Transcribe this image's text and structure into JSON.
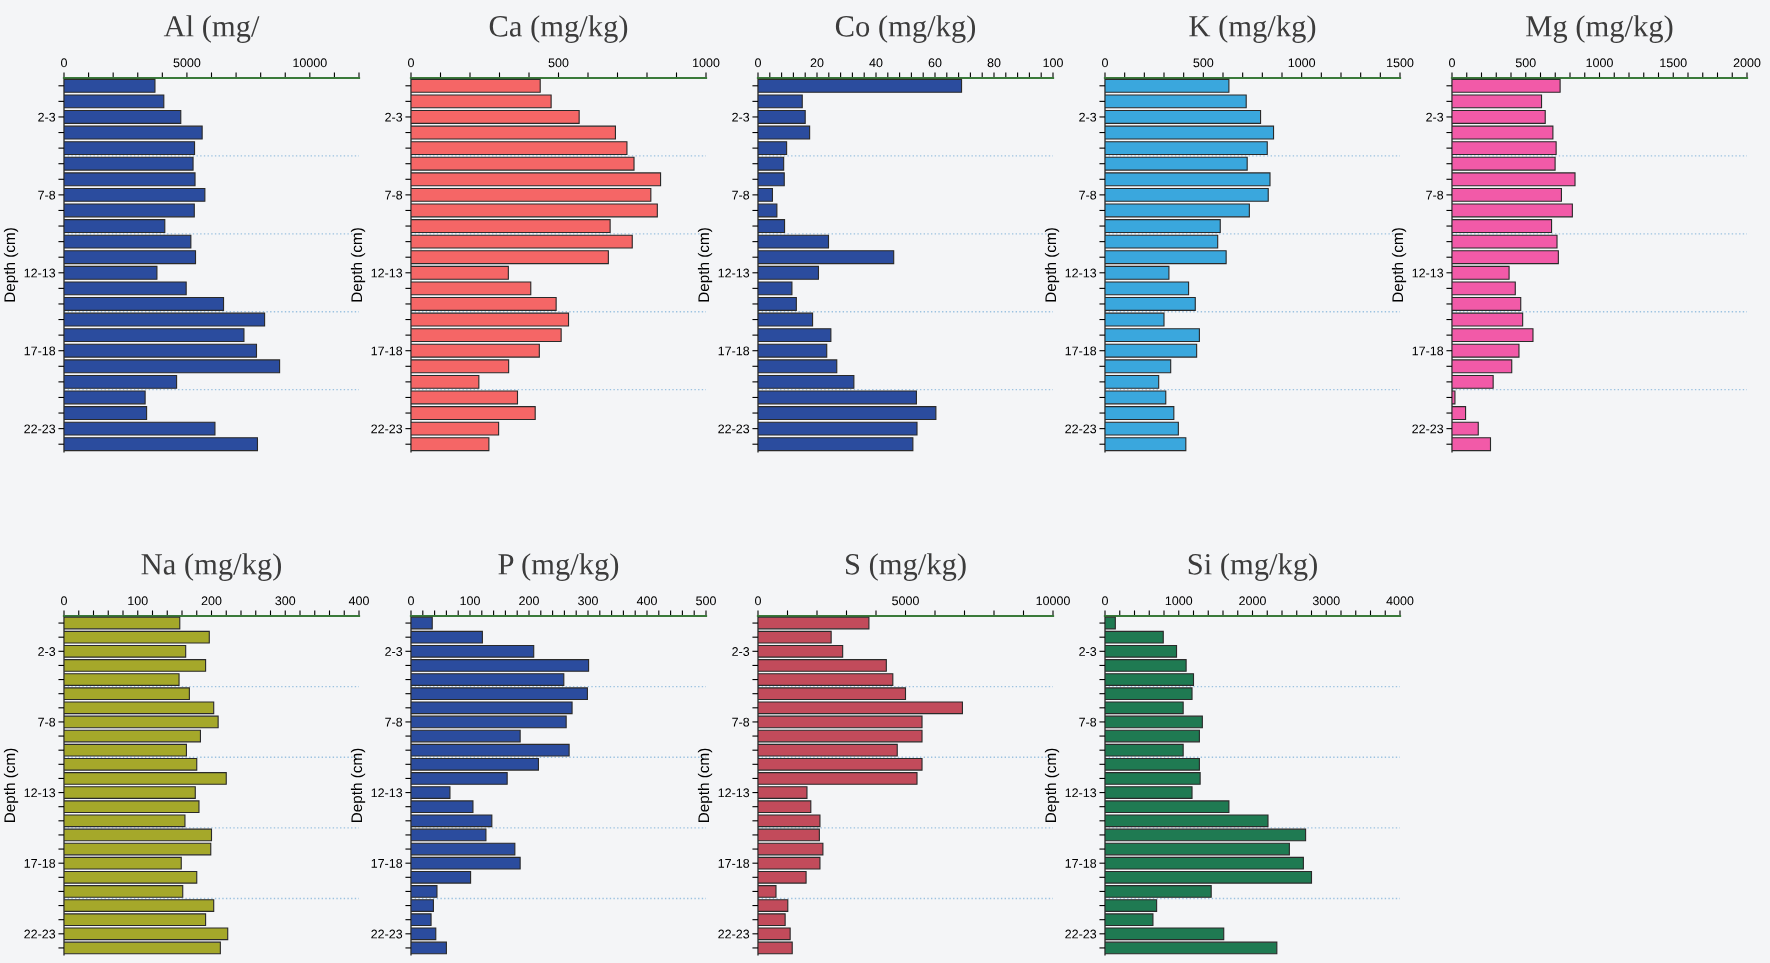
{
  "chart_data": [
    {
      "type": "bar",
      "orientation": "horizontal",
      "title": "Al (mg/",
      "ylabel": "Depth (cm)",
      "color": "#2b4c9e",
      "categories": [
        null,
        null,
        "2-3",
        null,
        null,
        null,
        null,
        "7-8",
        null,
        null,
        null,
        null,
        "12-13",
        null,
        null,
        null,
        null,
        "17-18",
        null,
        null,
        null,
        null,
        "22-23",
        null
      ],
      "values": [
        3700,
        4060,
        4750,
        5620,
        5310,
        5250,
        5330,
        5730,
        5300,
        4100,
        5160,
        5350,
        3780,
        4970,
        6490,
        8160,
        7320,
        7830,
        8770,
        4580,
        3300,
        3360,
        6140,
        7870
      ],
      "xlim": [
        0,
        12000
      ],
      "xticks": [
        0,
        {
          "value": 1000,
          "label": null
        },
        {
          "value": 2000,
          "label": null
        },
        {
          "value": 3000,
          "label": null
        },
        {
          "value": 4000,
          "label": null
        },
        5000,
        {
          "value": 6000,
          "label": null
        },
        {
          "value": 7000,
          "label": null
        },
        {
          "value": 8000,
          "label": null
        },
        {
          "value": 9000,
          "label": null
        },
        10000,
        {
          "value": 11000,
          "label": null
        },
        {
          "value": 12000,
          "label": null
        }
      ]
    },
    {
      "type": "bar",
      "orientation": "horizontal",
      "title": "Ca (mg/kg)",
      "ylabel": "Depth (cm)",
      "color": "#f56666",
      "categories": [
        null,
        null,
        "2-3",
        null,
        null,
        null,
        null,
        "7-8",
        null,
        null,
        null,
        null,
        "12-13",
        null,
        null,
        null,
        null,
        "17-18",
        null,
        null,
        null,
        null,
        "22-23",
        null
      ],
      "values": [
        438,
        475,
        570,
        693,
        732,
        756,
        846,
        813,
        835,
        675,
        750,
        669,
        330,
        406,
        492,
        534,
        509,
        435,
        331,
        230,
        361,
        421,
        297,
        264
      ],
      "xlim": [
        0,
        1000
      ],
      "xticks": [
        0,
        {
          "value": 100,
          "label": null
        },
        {
          "value": 200,
          "label": null
        },
        {
          "value": 300,
          "label": null
        },
        {
          "value": 400,
          "label": null
        },
        500,
        {
          "value": 600,
          "label": null
        },
        {
          "value": 700,
          "label": null
        },
        {
          "value": 800,
          "label": null
        },
        {
          "value": 900,
          "label": null
        },
        1000
      ]
    },
    {
      "type": "bar",
      "orientation": "horizontal",
      "title": "Co (mg/kg)",
      "ylabel": "Depth (cm)",
      "color": "#2b4c9e",
      "categories": [
        null,
        null,
        "2-3",
        null,
        null,
        null,
        null,
        "7-8",
        null,
        null,
        null,
        null,
        "12-13",
        null,
        null,
        null,
        null,
        "17-18",
        null,
        null,
        null,
        null,
        "22-23",
        null
      ],
      "values": [
        69,
        15,
        16,
        17.5,
        9.7,
        8.7,
        8.9,
        4.9,
        6.4,
        9,
        23.9,
        46,
        20.5,
        11.5,
        13,
        18.5,
        24.7,
        23.3,
        26.7,
        32.5,
        53.7,
        60.3,
        53.9,
        52.5
      ],
      "xlim": [
        0,
        100
      ],
      "xticks": [
        0,
        {
          "value": 4,
          "label": null
        },
        {
          "value": 8,
          "label": null
        },
        {
          "value": 12,
          "label": null
        },
        {
          "value": 16,
          "label": null
        },
        20,
        {
          "value": 24,
          "label": null
        },
        {
          "value": 28,
          "label": null
        },
        {
          "value": 32,
          "label": null
        },
        {
          "value": 36,
          "label": null
        },
        40,
        {
          "value": 44,
          "label": null
        },
        {
          "value": 48,
          "label": null
        },
        {
          "value": 52,
          "label": null
        },
        {
          "value": 56,
          "label": null
        },
        60,
        {
          "value": 64,
          "label": null
        },
        {
          "value": 68,
          "label": null
        },
        {
          "value": 72,
          "label": null
        },
        {
          "value": 76,
          "label": null
        },
        80,
        {
          "value": 84,
          "label": null
        },
        {
          "value": 88,
          "label": null
        },
        {
          "value": 92,
          "label": null
        },
        {
          "value": 96,
          "label": null
        },
        100
      ]
    },
    {
      "type": "bar",
      "orientation": "horizontal",
      "title": "K (mg/kg)",
      "ylabel": "Depth (cm)",
      "color": "#3aa7dd",
      "categories": [
        null,
        null,
        "2-3",
        null,
        null,
        null,
        null,
        "7-8",
        null,
        null,
        null,
        null,
        "12-13",
        null,
        null,
        null,
        null,
        "17-18",
        null,
        null,
        null,
        null,
        "22-23",
        null
      ],
      "values": [
        630,
        718,
        791,
        857,
        825,
        723,
        839,
        830,
        734,
        586,
        573,
        616,
        325,
        425,
        459,
        300,
        480,
        466,
        334,
        273,
        309,
        350,
        373,
        411
      ],
      "xlim": [
        0,
        1500
      ],
      "xticks": [
        0,
        {
          "value": 100,
          "label": null
        },
        {
          "value": 200,
          "label": null
        },
        {
          "value": 300,
          "label": null
        },
        {
          "value": 400,
          "label": null
        },
        500,
        {
          "value": 600,
          "label": null
        },
        {
          "value": 700,
          "label": null
        },
        {
          "value": 800,
          "label": null
        },
        {
          "value": 900,
          "label": null
        },
        1000,
        {
          "value": 1100,
          "label": null
        },
        {
          "value": 1200,
          "label": null
        },
        {
          "value": 1300,
          "label": null
        },
        {
          "value": 1400,
          "label": null
        },
        1500
      ]
    },
    {
      "type": "bar",
      "orientation": "horizontal",
      "title": "Mg (mg/kg)",
      "ylabel": "Depth (cm)",
      "color": "#f25aa8",
      "categories": [
        null,
        null,
        "2-3",
        null,
        null,
        null,
        null,
        "7-8",
        null,
        null,
        null,
        null,
        "12-13",
        null,
        null,
        null,
        null,
        "17-18",
        null,
        null,
        null,
        null,
        "22-23",
        null
      ],
      "values": [
        733,
        607,
        632,
        684,
        706,
        699,
        834,
        742,
        816,
        675,
        712,
        721,
        387,
        429,
        466,
        479,
        549,
        454,
        405,
        279,
        20,
        92,
        178,
        261
      ],
      "xlim": [
        0,
        2000
      ],
      "xticks": [
        0,
        {
          "value": 100,
          "label": null
        },
        {
          "value": 200,
          "label": null
        },
        {
          "value": 300,
          "label": null
        },
        {
          "value": 400,
          "label": null
        },
        500,
        {
          "value": 600,
          "label": null
        },
        {
          "value": 700,
          "label": null
        },
        {
          "value": 800,
          "label": null
        },
        {
          "value": 900,
          "label": null
        },
        1000,
        {
          "value": 1100,
          "label": null
        },
        {
          "value": 1200,
          "label": null
        },
        {
          "value": 1300,
          "label": null
        },
        {
          "value": 1400,
          "label": null
        },
        1500,
        {
          "value": 1600,
          "label": null
        },
        {
          "value": 1700,
          "label": null
        },
        {
          "value": 1800,
          "label": null
        },
        {
          "value": 1900,
          "label": null
        },
        2000
      ]
    },
    {
      "type": "bar",
      "orientation": "horizontal",
      "title": "Na (mg/kg)",
      "ylabel": "Depth (cm)",
      "color": "#a5a82a",
      "categories": [
        null,
        null,
        "2-3",
        null,
        null,
        null,
        null,
        "7-8",
        null,
        null,
        null,
        null,
        "12-13",
        null,
        null,
        null,
        null,
        "17-18",
        null,
        null,
        null,
        null,
        "22-23",
        null
      ],
      "values": [
        157,
        197,
        165,
        192,
        156,
        170,
        203,
        209,
        185,
        166,
        180,
        220,
        178,
        183,
        164,
        200,
        199,
        159,
        180,
        161,
        203,
        192,
        222,
        212
      ],
      "xlim": [
        0,
        400
      ],
      "xticks": [
        0,
        {
          "value": 20,
          "label": null
        },
        {
          "value": 40,
          "label": null
        },
        {
          "value": 60,
          "label": null
        },
        {
          "value": 80,
          "label": null
        },
        100,
        {
          "value": 120,
          "label": null
        },
        {
          "value": 140,
          "label": null
        },
        {
          "value": 160,
          "label": null
        },
        {
          "value": 180,
          "label": null
        },
        200,
        {
          "value": 220,
          "label": null
        },
        {
          "value": 240,
          "label": null
        },
        {
          "value": 260,
          "label": null
        },
        {
          "value": 280,
          "label": null
        },
        300,
        {
          "value": 320,
          "label": null
        },
        {
          "value": 340,
          "label": null
        },
        {
          "value": 360,
          "label": null
        },
        {
          "value": 380,
          "label": null
        },
        400
      ]
    },
    {
      "type": "bar",
      "orientation": "horizontal",
      "title": "P (mg/kg)",
      "ylabel": "Depth (cm)",
      "color": "#2b4c9e",
      "categories": [
        null,
        null,
        "2-3",
        null,
        null,
        null,
        null,
        "7-8",
        null,
        null,
        null,
        null,
        "12-13",
        null,
        null,
        null,
        null,
        "17-18",
        null,
        null,
        null,
        null,
        "22-23",
        null
      ],
      "values": [
        36,
        121,
        208,
        301,
        259,
        299,
        273,
        263,
        185,
        268,
        216,
        163,
        66,
        105,
        137,
        127,
        176,
        185,
        101,
        44,
        38,
        34,
        42,
        60
      ],
      "xlim": [
        0,
        500
      ],
      "xticks": [
        0,
        {
          "value": 20,
          "label": null
        },
        {
          "value": 40,
          "label": null
        },
        {
          "value": 60,
          "label": null
        },
        {
          "value": 80,
          "label": null
        },
        100,
        {
          "value": 120,
          "label": null
        },
        {
          "value": 140,
          "label": null
        },
        {
          "value": 160,
          "label": null
        },
        {
          "value": 180,
          "label": null
        },
        200,
        {
          "value": 220,
          "label": null
        },
        {
          "value": 240,
          "label": null
        },
        {
          "value": 260,
          "label": null
        },
        {
          "value": 280,
          "label": null
        },
        300,
        {
          "value": 320,
          "label": null
        },
        {
          "value": 340,
          "label": null
        },
        {
          "value": 360,
          "label": null
        },
        {
          "value": 380,
          "label": null
        },
        400,
        {
          "value": 420,
          "label": null
        },
        {
          "value": 440,
          "label": null
        },
        {
          "value": 460,
          "label": null
        },
        {
          "value": 480,
          "label": null
        },
        500
      ]
    },
    {
      "type": "bar",
      "orientation": "horizontal",
      "title": "S (mg/kg)",
      "ylabel": "Depth (cm)",
      "color": "#c24b5b",
      "categories": [
        null,
        null,
        "2-3",
        null,
        null,
        null,
        null,
        "7-8",
        null,
        null,
        null,
        null,
        "12-13",
        null,
        null,
        null,
        null,
        "17-18",
        null,
        null,
        null,
        null,
        "22-23",
        null
      ],
      "values": [
        3760,
        2480,
        2870,
        4350,
        4570,
        5000,
        6930,
        5560,
        5560,
        4720,
        5560,
        5390,
        1660,
        1790,
        2100,
        2080,
        2200,
        2100,
        1630,
        610,
        1010,
        920,
        1090,
        1160
      ],
      "xlim": [
        0,
        10000
      ],
      "xticks": [
        0,
        {
          "value": 1000,
          "label": null
        },
        {
          "value": 2000,
          "label": null
        },
        {
          "value": 3000,
          "label": null
        },
        {
          "value": 4000,
          "label": null
        },
        5000,
        {
          "value": 6000,
          "label": null
        },
        {
          "value": 7000,
          "label": null
        },
        {
          "value": 8000,
          "label": null
        },
        {
          "value": 9000,
          "label": null
        },
        10000
      ]
    },
    {
      "type": "bar",
      "orientation": "horizontal",
      "title": "Si (mg/kg)",
      "ylabel": "Depth (cm)",
      "color": "#1f7a52",
      "categories": [
        null,
        null,
        "2-3",
        null,
        null,
        null,
        null,
        "7-8",
        null,
        null,
        null,
        null,
        "12-13",
        null,
        null,
        null,
        null,
        "17-18",
        null,
        null,
        null,
        null,
        "22-23",
        null
      ],
      "values": [
        140,
        790,
        970,
        1100,
        1200,
        1180,
        1060,
        1320,
        1280,
        1060,
        1280,
        1290,
        1180,
        1680,
        2210,
        2720,
        2500,
        2690,
        2800,
        1440,
        700,
        650,
        1610,
        2330
      ],
      "xlim": [
        0,
        4000
      ],
      "xticks": [
        0,
        {
          "value": 200,
          "label": null
        },
        {
          "value": 400,
          "label": null
        },
        {
          "value": 600,
          "label": null
        },
        {
          "value": 800,
          "label": null
        },
        1000,
        {
          "value": 1200,
          "label": null
        },
        {
          "value": 1400,
          "label": null
        },
        {
          "value": 1600,
          "label": null
        },
        {
          "value": 1800,
          "label": null
        },
        2000,
        {
          "value": 2200,
          "label": null
        },
        {
          "value": 2400,
          "label": null
        },
        {
          "value": 2600,
          "label": null
        },
        {
          "value": 2800,
          "label": null
        },
        3000,
        {
          "value": 3200,
          "label": null
        },
        {
          "value": 3400,
          "label": null
        },
        {
          "value": 3600,
          "label": null
        },
        {
          "value": 3800,
          "label": null
        },
        4000
      ]
    }
  ]
}
